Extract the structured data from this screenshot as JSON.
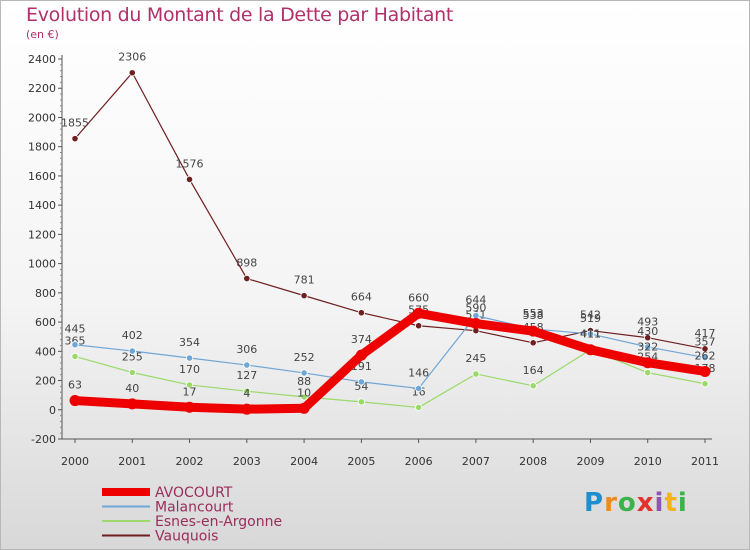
{
  "chart_data": {
    "type": "line",
    "title": "Evolution du Montant de la Dette par Habitant",
    "subtitle": "(en €)",
    "xlabel": "",
    "ylabel": "",
    "categories": [
      "2000",
      "2001",
      "2002",
      "2003",
      "2004",
      "2005",
      "2006",
      "2007",
      "2008",
      "2009",
      "2010",
      "2011"
    ],
    "ylim": [
      -200,
      2400
    ],
    "yticks": [
      -200,
      0,
      200,
      400,
      600,
      800,
      1000,
      1200,
      1400,
      1600,
      1800,
      2000,
      2200,
      2400
    ],
    "grid": false,
    "legend_position": "bottom-left",
    "series": [
      {
        "name": "Vauquois",
        "color": "#6e1f1f",
        "width": 1.2,
        "values": [
          1855,
          2306,
          1576,
          898,
          781,
          664,
          575,
          541,
          458,
          542,
          493,
          417
        ],
        "labels": [
          "1855",
          "2306",
          "1576",
          "898",
          "781",
          "664",
          "575",
          "541",
          "458",
          "542",
          "493",
          "417"
        ]
      },
      {
        "name": "Esnes-en-Argonne",
        "color": "#9ad96a",
        "width": 1.2,
        "values": [
          365,
          255,
          170,
          127,
          88,
          54,
          16,
          245,
          164,
          411,
          254,
          178
        ],
        "labels": [
          "365",
          "255",
          "170",
          "127",
          "88",
          "54",
          "16",
          "245",
          "164",
          "411",
          "254",
          "178"
        ]
      },
      {
        "name": "Malancourt",
        "color": "#6ea6d6",
        "width": 1.2,
        "values": [
          445,
          402,
          354,
          306,
          252,
          191,
          146,
          644,
          553,
          519,
          430,
          357
        ],
        "labels": [
          "445",
          "402",
          "354",
          "306",
          "252",
          "191",
          "146",
          "644",
          "553",
          "519",
          "430",
          "357"
        ]
      },
      {
        "name": "AVOCOURT",
        "color": "#ee0000",
        "width": 9,
        "values": [
          63,
          40,
          17,
          4,
          10,
          374,
          660,
          590,
          538,
          411,
          322,
          262
        ],
        "labels": [
          "63",
          "40",
          "17",
          "4",
          "10",
          "374",
          "660",
          "590",
          "538",
          "411",
          "322",
          "262"
        ]
      }
    ],
    "legend": [
      "AVOCOURT",
      "Malancourt",
      "Esnes-en-Argonne",
      "Vauquois"
    ]
  },
  "branding": {
    "letters": [
      "P",
      "r",
      "o",
      "x",
      "i",
      "t",
      "i"
    ],
    "colors": [
      "#1d8fd1",
      "#f08a1c",
      "#3bb24a",
      "#e6302b",
      "#8f55b3",
      "#f2b41a",
      "#3bb24a"
    ]
  }
}
